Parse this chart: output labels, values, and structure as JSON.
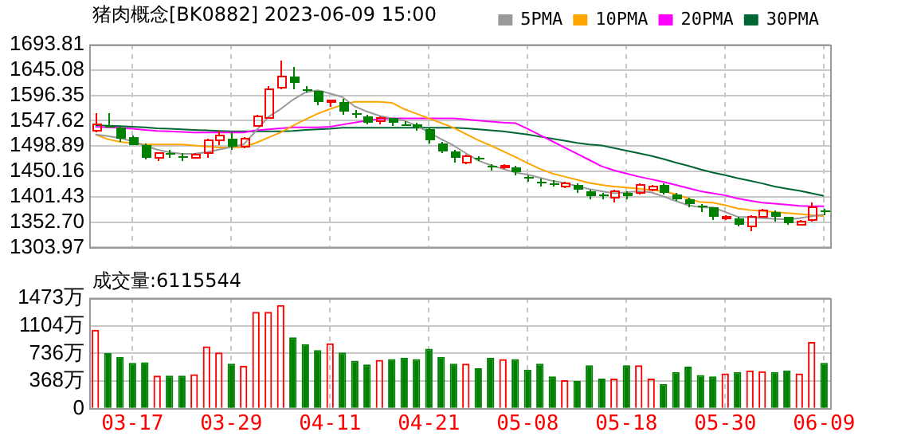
{
  "chart_data": [
    {
      "type": "candlestick",
      "title": "猪肉概念[BK0882] 2023-06-09 15:00",
      "categories": [
        null,
        null,
        null,
        null,
        null,
        null,
        null,
        null,
        null,
        null,
        null,
        null,
        null,
        null,
        null,
        null,
        null,
        null,
        null,
        null,
        null,
        null,
        null,
        null,
        null,
        null,
        null,
        null,
        null,
        null,
        null,
        null,
        null,
        null,
        null,
        null,
        null,
        null,
        null,
        null,
        null,
        null,
        null,
        null,
        null,
        null,
        null,
        null,
        null,
        null,
        null,
        null,
        null,
        null,
        null,
        null,
        null,
        null,
        null,
        null
      ],
      "ohlc": [
        [
          1527,
          1561,
          1525,
          1540
        ],
        [
          1538,
          1563,
          1534,
          1536
        ],
        [
          1534,
          1537,
          1508,
          1512
        ],
        [
          1516,
          1518,
          1500,
          1501
        ],
        [
          1502,
          1503,
          1474,
          1475
        ],
        [
          1475,
          1486,
          1471,
          1484
        ],
        [
          1485,
          1493,
          1476,
          1484
        ],
        [
          1479,
          1485,
          1471,
          1478
        ],
        [
          1477,
          1486,
          1475,
          1482
        ],
        [
          1484,
          1512,
          1477,
          1509
        ],
        [
          1509,
          1529,
          1502,
          1520
        ],
        [
          1512,
          1526,
          1492,
          1498
        ],
        [
          1498,
          1516,
          1495,
          1512
        ],
        [
          1539,
          1559,
          1536,
          1557
        ],
        [
          1554,
          1615,
          1553,
          1608
        ],
        [
          1612,
          1662,
          1608,
          1633
        ],
        [
          1633,
          1651,
          1608,
          1621
        ],
        [
          1609,
          1614,
          1603,
          1608
        ],
        [
          1604,
          1605,
          1578,
          1582
        ],
        [
          1584,
          1588,
          1573,
          1586
        ],
        [
          1584,
          1589,
          1560,
          1566
        ],
        [
          1562,
          1567,
          1552,
          1561
        ],
        [
          1557,
          1558,
          1541,
          1543
        ],
        [
          1547,
          1555,
          1542,
          1553
        ],
        [
          1552,
          1553,
          1537,
          1544
        ],
        [
          1542,
          1547,
          1536,
          1541
        ],
        [
          1541,
          1545,
          1527,
          1534
        ],
        [
          1532,
          1534,
          1504,
          1511
        ],
        [
          1505,
          1506,
          1484,
          1489
        ],
        [
          1489,
          1493,
          1466,
          1477
        ],
        [
          1466,
          1481,
          1463,
          1479
        ],
        [
          1476,
          1479,
          1471,
          1474
        ],
        [
          1462,
          1465,
          1453,
          1460
        ],
        [
          1458,
          1463,
          1455,
          1460
        ],
        [
          1458,
          1460,
          1444,
          1448
        ],
        [
          1440,
          1442,
          1430,
          1436
        ],
        [
          1430,
          1437,
          1422,
          1428
        ],
        [
          1428,
          1432,
          1420,
          1424
        ],
        [
          1421,
          1430,
          1418,
          1427
        ],
        [
          1425,
          1426,
          1410,
          1414
        ],
        [
          1412,
          1414,
          1395,
          1404
        ],
        [
          1405,
          1408,
          1396,
          1403
        ],
        [
          1400,
          1415,
          1389,
          1412
        ],
        [
          1410,
          1412,
          1398,
          1402
        ],
        [
          1408,
          1428,
          1405,
          1424
        ],
        [
          1415,
          1425,
          1412,
          1422
        ],
        [
          1425,
          1427,
          1406,
          1410
        ],
        [
          1405,
          1408,
          1393,
          1398
        ],
        [
          1398,
          1400,
          1380,
          1387
        ],
        [
          1385,
          1387,
          1372,
          1383
        ],
        [
          1380,
          1382,
          1358,
          1362
        ],
        [
          1362,
          1366,
          1358,
          1364
        ],
        [
          1361,
          1362,
          1345,
          1347
        ],
        [
          1343,
          1366,
          1336,
          1362
        ],
        [
          1364,
          1378,
          1362,
          1376
        ],
        [
          1372,
          1374,
          1355,
          1362
        ],
        [
          1362,
          1364,
          1348,
          1352
        ],
        [
          1349,
          1357,
          1346,
          1355
        ],
        [
          1356,
          1390,
          1353,
          1382
        ],
        [
          1374,
          1378,
          1365,
          1372
        ]
      ],
      "colors": [
        "#ff0000",
        "#008000",
        "#008000",
        "#008000",
        "#008000",
        "#ff0000",
        "#008000",
        "#008000",
        "#ff0000",
        "#ff0000",
        "#ff0000",
        "#008000",
        "#ff0000",
        "#ff0000",
        "#ff0000",
        "#ff0000",
        "#008000",
        "#008000",
        "#008000",
        "#ff0000",
        "#008000",
        "#008000",
        "#008000",
        "#ff0000",
        "#008000",
        "#008000",
        "#008000",
        "#008000",
        "#008000",
        "#008000",
        "#ff0000",
        "#008000",
        "#008000",
        "#ff0000",
        "#008000",
        "#008000",
        "#008000",
        "#008000",
        "#ff0000",
        "#008000",
        "#008000",
        "#008000",
        "#ff0000",
        "#008000",
        "#ff0000",
        "#ff0000",
        "#008000",
        "#008000",
        "#008000",
        "#008000",
        "#008000",
        "#ff0000",
        "#008000",
        "#ff0000",
        "#ff0000",
        "#008000",
        "#008000",
        "#ff0000",
        "#ff0000",
        "#008000"
      ],
      "series": [
        {
          "type": "line",
          "name": "5PMA",
          "color": "#999999",
          "values": [
            1521,
            1518,
            1514,
            1508,
            1500,
            1492,
            1487,
            1484,
            1484,
            1487,
            1492,
            1497,
            1502,
            1528,
            1555,
            1570,
            1588,
            1602,
            1606,
            1600,
            1593,
            1575,
            1565,
            1557,
            1552,
            1548,
            1538,
            1525,
            1512,
            1500,
            1485,
            1471,
            1462,
            1455,
            1448,
            1444,
            1438,
            1432,
            1428,
            1422,
            1416,
            1412,
            1408,
            1410,
            1412,
            1410,
            1402,
            1393,
            1385,
            1381,
            1381,
            1372,
            1363,
            1362,
            1360,
            1359,
            1358,
            1360,
            1364,
            1367
          ]
        },
        {
          "type": "line",
          "name": "10PMA",
          "color": "#ffa500",
          "values": [
            1521,
            1512,
            1507,
            1504,
            1502,
            1502,
            1502,
            1502,
            1500,
            1498,
            1496,
            1496,
            1497,
            1505,
            1515,
            1525,
            1538,
            1550,
            1561,
            1570,
            1578,
            1584,
            1584,
            1584,
            1582,
            1570,
            1561,
            1552,
            1543,
            1534,
            1522,
            1510,
            1500,
            1489,
            1478,
            1466,
            1455,
            1446,
            1440,
            1434,
            1428,
            1424,
            1421,
            1419,
            1417,
            1414,
            1412,
            1406,
            1398,
            1391,
            1390,
            1385,
            1379,
            1376,
            1374,
            1372,
            1370,
            1368,
            1366,
            1364
          ]
        },
        {
          "type": "line",
          "name": "20PMA",
          "color": "#ff00ff",
          "values": [
            1536,
            1535,
            1534,
            1532,
            1530,
            1528,
            1527,
            1526,
            1525,
            1525,
            1525,
            1525,
            1525,
            1529,
            1531,
            1533,
            1535,
            1535,
            1535,
            1536,
            1540,
            1544,
            1548,
            1551,
            1552,
            1552,
            1552,
            1552,
            1552,
            1552,
            1550,
            1548,
            1546,
            1544,
            1543,
            1532,
            1520,
            1508,
            1496,
            1484,
            1472,
            1460,
            1452,
            1446,
            1440,
            1435,
            1430,
            1424,
            1418,
            1412,
            1408,
            1404,
            1398,
            1394,
            1390,
            1388,
            1386,
            1384,
            1383,
            1383
          ]
        },
        {
          "type": "line",
          "name": "30PMA",
          "color": "#006633",
          "values": [
            1539,
            1538,
            1537,
            1536,
            1535,
            1533,
            1532,
            1531,
            1530,
            1529,
            1528,
            1527,
            1527,
            1527,
            1527,
            1527,
            1528,
            1530,
            1531,
            1532,
            1534,
            1534,
            1534,
            1534,
            1534,
            1534,
            1534,
            1534,
            1534,
            1534,
            1533,
            1531,
            1529,
            1527,
            1524,
            1521,
            1517,
            1513,
            1509,
            1505,
            1502,
            1500,
            1495,
            1490,
            1485,
            1480,
            1474,
            1467,
            1461,
            1454,
            1448,
            1443,
            1437,
            1432,
            1427,
            1421,
            1417,
            1413,
            1408,
            1403
          ]
        }
      ],
      "legend": "top right",
      "ylim": [
        1303.97,
        1693.81
      ],
      "yticks": [
        1303.97,
        {
          "value": 1352.7,
          "label": "1352.70"
        },
        1401.43,
        1450.16,
        1498.89,
        1547.62,
        1596.35,
        1645.08,
        1693.81
      ],
      "grid": true,
      "tick_labels": "y"
    },
    {
      "type": "bar",
      "title": "成交量:6115544",
      "categories": [
        null,
        null,
        null,
        "03-17",
        null,
        null,
        null,
        null,
        null,
        null,
        null,
        "03-29",
        null,
        null,
        null,
        null,
        null,
        null,
        null,
        "04-11",
        null,
        null,
        null,
        null,
        null,
        null,
        null,
        "04-21",
        null,
        null,
        null,
        null,
        null,
        null,
        null,
        "05-08",
        null,
        null,
        null,
        null,
        null,
        null,
        null,
        "05-18",
        null,
        null,
        null,
        null,
        null,
        null,
        null,
        "05-30",
        null,
        null,
        null,
        null,
        null,
        null,
        null,
        "06-09"
      ],
      "values": [
        1050,
        740,
        690,
        610,
        620,
        440,
        440,
        440,
        460,
        830,
        750,
        600,
        570,
        1290,
        1290,
        1380,
        950,
        860,
        780,
        870,
        750,
        640,
        590,
        650,
        660,
        680,
        660,
        800,
        690,
        600,
        600,
        540,
        680,
        660,
        660,
        520,
        600,
        430,
        380,
        370,
        580,
        400,
        400,
        580,
        580,
        400,
        330,
        490,
        560,
        450,
        430,
        470,
        490,
        510,
        500,
        490,
        510,
        470,
        890,
        612
      ],
      "colors": [
        "#ff0000",
        "#008000",
        "#008000",
        "#008000",
        "#008000",
        "#ff0000",
        "#008000",
        "#008000",
        "#ff0000",
        "#ff0000",
        "#ff0000",
        "#008000",
        "#ff0000",
        "#ff0000",
        "#ff0000",
        "#ff0000",
        "#008000",
        "#008000",
        "#008000",
        "#ff0000",
        "#008000",
        "#008000",
        "#008000",
        "#ff0000",
        "#008000",
        "#008000",
        "#008000",
        "#008000",
        "#008000",
        "#008000",
        "#ff0000",
        "#008000",
        "#008000",
        "#ff0000",
        "#008000",
        "#008000",
        "#008000",
        "#008000",
        "#ff0000",
        "#008000",
        "#008000",
        "#008000",
        "#ff0000",
        "#008000",
        "#ff0000",
        "#ff0000",
        "#008000",
        "#008000",
        "#008000",
        "#008000",
        "#008000",
        "#ff0000",
        "#008000",
        "#ff0000",
        "#ff0000",
        "#008000",
        "#008000",
        "#ff0000",
        "#ff0000",
        "#008000"
      ],
      "ylim": [
        0,
        1473
      ],
      "yticks": [
        0,
        {
          "value": 368,
          "label": "368万"
        },
        {
          "value": 736,
          "label": "736万"
        },
        {
          "value": 1104,
          "label": "1104万"
        },
        {
          "value": 1473,
          "label": "1473万"
        }
      ],
      "grid": true
    }
  ]
}
